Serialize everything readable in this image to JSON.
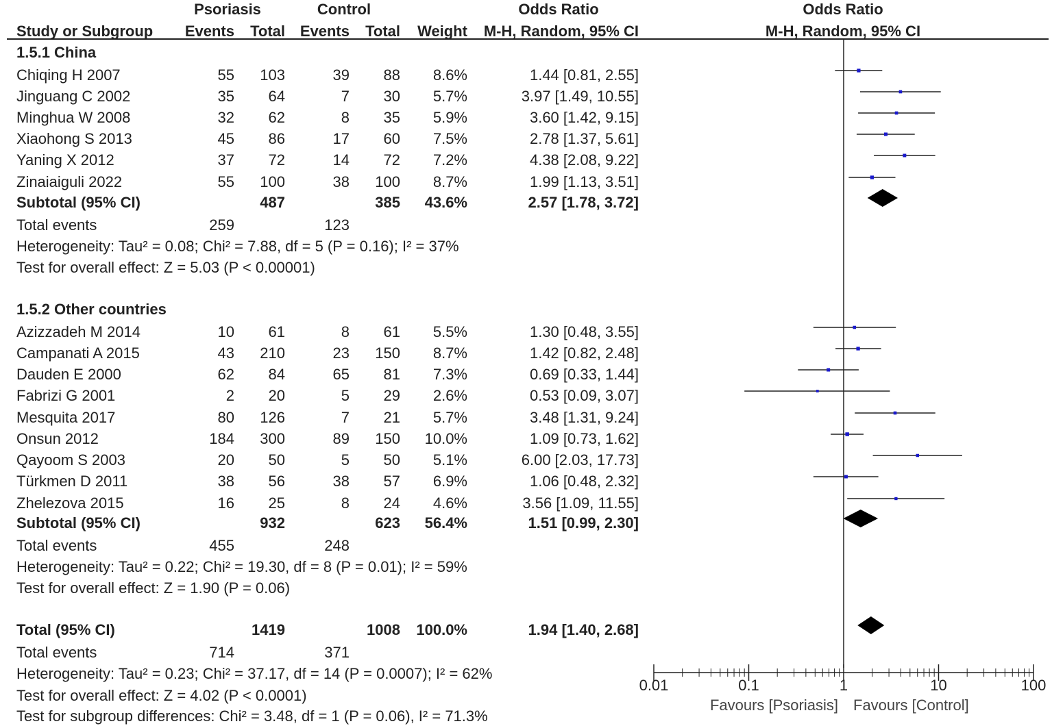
{
  "header": {
    "group1": "Psoriasis",
    "group2": "Control",
    "effect": "Odds Ratio",
    "plot_title": "Odds Ratio",
    "col_study": "Study or Subgroup",
    "col_events1": "Events",
    "col_total1": "Total",
    "col_events2": "Events",
    "col_total2": "Total",
    "col_weight": "Weight",
    "col_method": "M-H, Random, 95% CI",
    "plot_method": "M-H, Random, 95% CI"
  },
  "subgroups": [
    {
      "title": "1.5.1 China",
      "studies": [
        {
          "name": "Chiqing H 2007",
          "e1": "55",
          "n1": "103",
          "e2": "39",
          "n2": "88",
          "weight": "8.6%",
          "ci": "1.44 [0.81, 2.55]"
        },
        {
          "name": "Jinguang C 2002",
          "e1": "35",
          "n1": "64",
          "e2": "7",
          "n2": "30",
          "weight": "5.7%",
          "ci": "3.97 [1.49, 10.55]"
        },
        {
          "name": "Minghua W 2008",
          "e1": "32",
          "n1": "62",
          "e2": "8",
          "n2": "35",
          "weight": "5.9%",
          "ci": "3.60 [1.42, 9.15]"
        },
        {
          "name": "Xiaohong S 2013",
          "e1": "45",
          "n1": "86",
          "e2": "17",
          "n2": "60",
          "weight": "7.5%",
          "ci": "2.78 [1.37, 5.61]"
        },
        {
          "name": "Yaning X 2012",
          "e1": "37",
          "n1": "72",
          "e2": "14",
          "n2": "72",
          "weight": "7.2%",
          "ci": "4.38 [2.08, 9.22]"
        },
        {
          "name": "Zinaiaiguli 2022",
          "e1": "55",
          "n1": "100",
          "e2": "38",
          "n2": "100",
          "weight": "8.7%",
          "ci": "1.99 [1.13, 3.51]"
        }
      ],
      "subtotal": {
        "label": "Subtotal (95% CI)",
        "n1": "487",
        "n2": "385",
        "weight": "43.6%",
        "ci": "2.57 [1.78, 3.72]"
      },
      "events": {
        "label": "Total events",
        "e1": "259",
        "e2": "123"
      },
      "heterogeneity": "Heterogeneity: Tau² = 0.08; Chi² = 7.88, df = 5 (P = 0.16); I² = 37%",
      "overall": "Test for overall effect: Z = 5.03 (P < 0.00001)"
    },
    {
      "title": "1.5.2 Other countries",
      "studies": [
        {
          "name": "Azizzadeh M 2014",
          "e1": "10",
          "n1": "61",
          "e2": "8",
          "n2": "61",
          "weight": "5.5%",
          "ci": "1.30 [0.48, 3.55]"
        },
        {
          "name": "Campanati A 2015",
          "e1": "43",
          "n1": "210",
          "e2": "23",
          "n2": "150",
          "weight": "8.7%",
          "ci": "1.42 [0.82, 2.48]"
        },
        {
          "name": "Dauden E 2000",
          "e1": "62",
          "n1": "84",
          "e2": "65",
          "n2": "81",
          "weight": "7.3%",
          "ci": "0.69 [0.33, 1.44]"
        },
        {
          "name": "Fabrizi G 2001",
          "e1": "2",
          "n1": "20",
          "e2": "5",
          "n2": "29",
          "weight": "2.6%",
          "ci": "0.53 [0.09, 3.07]"
        },
        {
          "name": "Mesquita 2017",
          "e1": "80",
          "n1": "126",
          "e2": "7",
          "n2": "21",
          "weight": "5.7%",
          "ci": "3.48 [1.31, 9.24]"
        },
        {
          "name": "Onsun 2012",
          "e1": "184",
          "n1": "300",
          "e2": "89",
          "n2": "150",
          "weight": "10.0%",
          "ci": "1.09 [0.73, 1.62]"
        },
        {
          "name": "Qayoom S 2003",
          "e1": "20",
          "n1": "50",
          "e2": "5",
          "n2": "50",
          "weight": "5.1%",
          "ci": "6.00 [2.03, 17.73]"
        },
        {
          "name": "Türkmen D 2011",
          "e1": "38",
          "n1": "56",
          "e2": "38",
          "n2": "57",
          "weight": "6.9%",
          "ci": "1.06 [0.48, 2.32]"
        },
        {
          "name": "Zhelezova 2015",
          "e1": "16",
          "n1": "25",
          "e2": "8",
          "n2": "24",
          "weight": "4.6%",
          "ci": "3.56 [1.09, 11.55]"
        }
      ],
      "subtotal": {
        "label": "Subtotal (95% CI)",
        "n1": "932",
        "n2": "623",
        "weight": "56.4%",
        "ci": "1.51 [0.99, 2.30]"
      },
      "events": {
        "label": "Total events",
        "e1": "455",
        "e2": "248"
      },
      "heterogeneity": "Heterogeneity: Tau² = 0.22; Chi² = 19.30, df = 8 (P = 0.01); I² = 59%",
      "overall": "Test for overall effect: Z = 1.90 (P = 0.06)"
    }
  ],
  "total": {
    "label": "Total (95% CI)",
    "n1": "1419",
    "n2": "1008",
    "weight": "100.0%",
    "ci": "1.94 [1.40, 2.68]",
    "events": {
      "label": "Total events",
      "e1": "714",
      "e2": "371"
    },
    "heterogeneity": "Heterogeneity: Tau² = 0.23; Chi² = 37.17, df = 14 (P = 0.0007); I² = 62%",
    "overall": "Test for overall effect: Z = 4.02 (P < 0.0001)",
    "subgroup_diff": "Test for subgroup differences: Chi² = 3.48, df = 1 (P = 0.06), I² = 71.3%"
  },
  "axis": {
    "ticks": [
      "0.01",
      "0.1",
      "1",
      "10",
      "100"
    ],
    "favours_left": "Favours [Psoriasis]",
    "favours_right": "Favours [Control]"
  },
  "colors": {
    "marker": "#1a1acc",
    "line": "#222222",
    "diamond": "#000000"
  },
  "chart_data": {
    "type": "forest",
    "title": "Odds Ratio",
    "xlabel": "M-H, Random, 95% CI",
    "scale": "log",
    "xlim": [
      0.01,
      100
    ],
    "xticks": [
      0.01,
      0.1,
      1,
      10,
      100
    ],
    "null_line": 1,
    "series": [
      {
        "name": "Chiqing H 2007",
        "or": 1.44,
        "lo": 0.81,
        "hi": 2.55,
        "weight": 8.6
      },
      {
        "name": "Jinguang C 2002",
        "or": 3.97,
        "lo": 1.49,
        "hi": 10.55,
        "weight": 5.7
      },
      {
        "name": "Minghua W 2008",
        "or": 3.6,
        "lo": 1.42,
        "hi": 9.15,
        "weight": 5.9
      },
      {
        "name": "Xiaohong S 2013",
        "or": 2.78,
        "lo": 1.37,
        "hi": 5.61,
        "weight": 7.5
      },
      {
        "name": "Yaning X 2012",
        "or": 4.38,
        "lo": 2.08,
        "hi": 9.22,
        "weight": 7.2
      },
      {
        "name": "Zinaiaiguli 2022",
        "or": 1.99,
        "lo": 1.13,
        "hi": 3.51,
        "weight": 8.7
      },
      {
        "name": "Subtotal China",
        "or": 2.57,
        "lo": 1.78,
        "hi": 3.72,
        "weight": 43.6,
        "summary": true
      },
      {
        "name": "Azizzadeh M 2014",
        "or": 1.3,
        "lo": 0.48,
        "hi": 3.55,
        "weight": 5.5
      },
      {
        "name": "Campanati A 2015",
        "or": 1.42,
        "lo": 0.82,
        "hi": 2.48,
        "weight": 8.7
      },
      {
        "name": "Dauden E 2000",
        "or": 0.69,
        "lo": 0.33,
        "hi": 1.44,
        "weight": 7.3
      },
      {
        "name": "Fabrizi G 2001",
        "or": 0.53,
        "lo": 0.09,
        "hi": 3.07,
        "weight": 2.6
      },
      {
        "name": "Mesquita 2017",
        "or": 3.48,
        "lo": 1.31,
        "hi": 9.24,
        "weight": 5.7
      },
      {
        "name": "Onsun 2012",
        "or": 1.09,
        "lo": 0.73,
        "hi": 1.62,
        "weight": 10.0
      },
      {
        "name": "Qayoom S 2003",
        "or": 6.0,
        "lo": 2.03,
        "hi": 17.73,
        "weight": 5.1
      },
      {
        "name": "Türkmen D 2011",
        "or": 1.06,
        "lo": 0.48,
        "hi": 2.32,
        "weight": 6.9
      },
      {
        "name": "Zhelezova 2015",
        "or": 3.56,
        "lo": 1.09,
        "hi": 11.55,
        "weight": 4.6
      },
      {
        "name": "Subtotal Other countries",
        "or": 1.51,
        "lo": 0.99,
        "hi": 2.3,
        "weight": 56.4,
        "summary": true
      },
      {
        "name": "Total",
        "or": 1.94,
        "lo": 1.4,
        "hi": 2.68,
        "weight": 100.0,
        "summary": true
      }
    ]
  }
}
